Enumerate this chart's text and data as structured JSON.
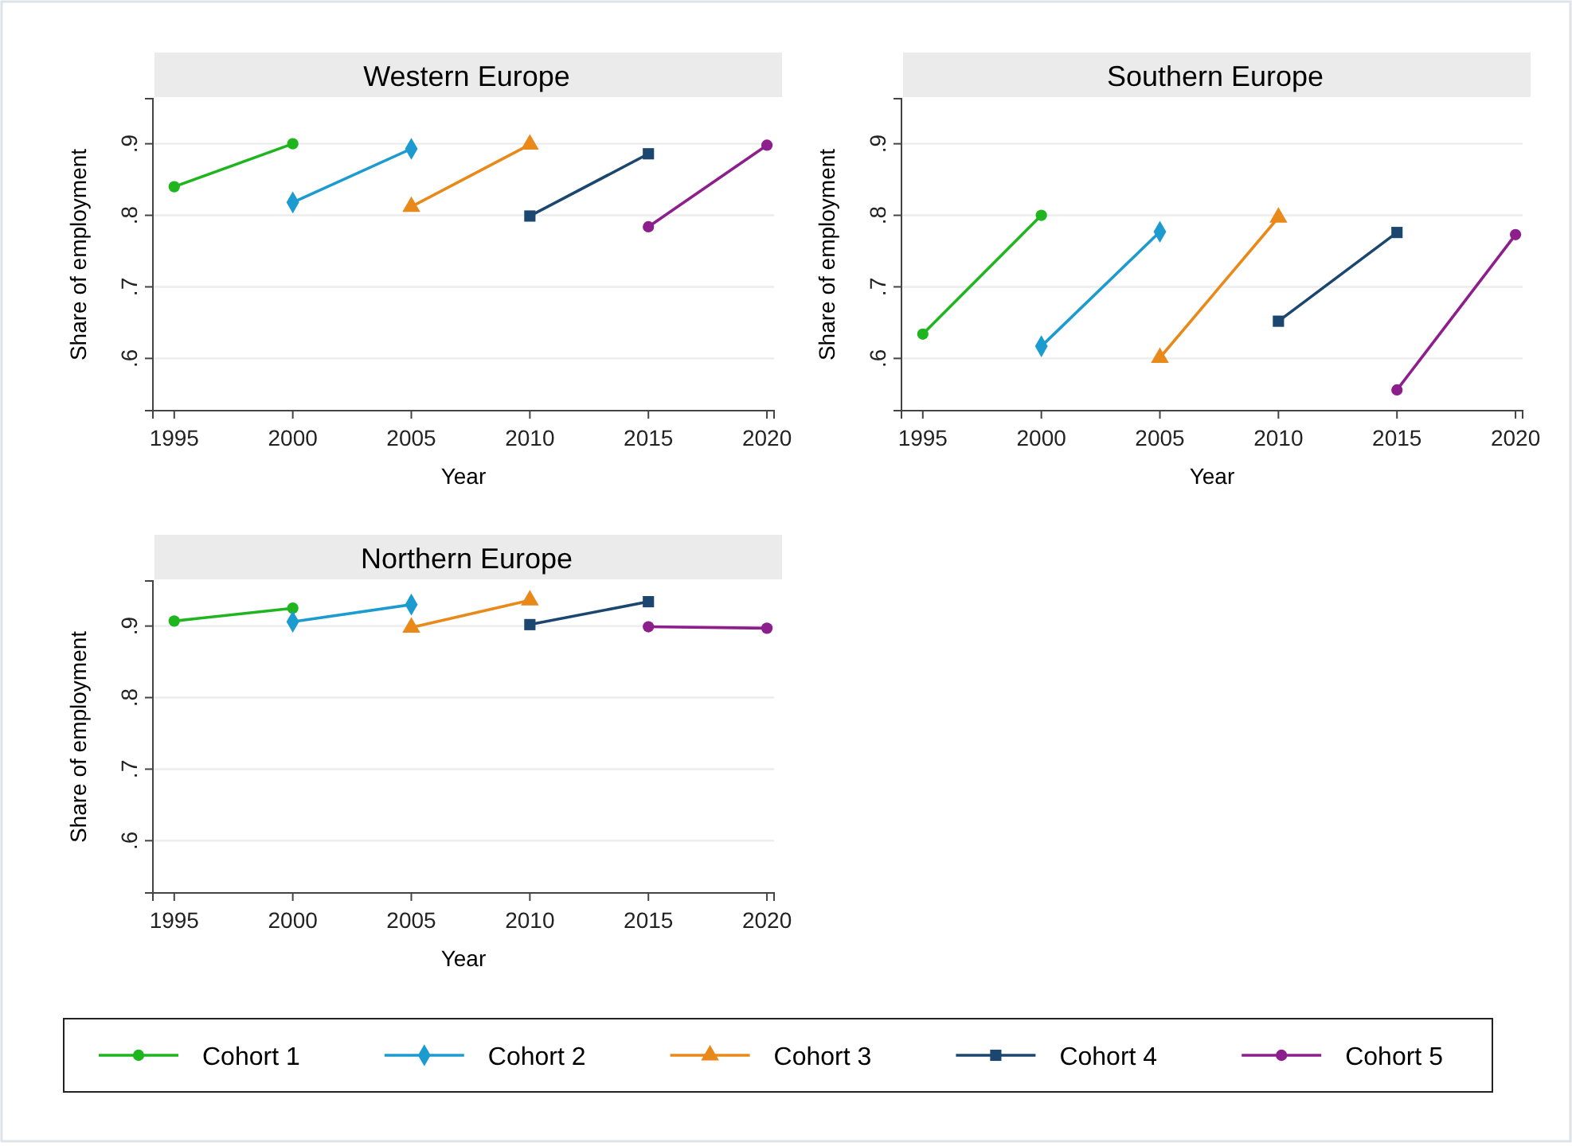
{
  "chart_data": [
    {
      "type": "line",
      "title": "Western Europe",
      "xlabel": "Year",
      "ylabel": "Share of employment",
      "xlim": [
        1994.1,
        2020.3
      ],
      "xticks": [
        1995,
        2000,
        2005,
        2010,
        2015,
        2020
      ],
      "ylim": [
        0.527,
        0.963
      ],
      "yticks": [
        {
          "value": 0.6,
          "label": ".6"
        },
        {
          "value": 0.7,
          "label": ".7"
        },
        {
          "value": 0.8,
          "label": ".8"
        },
        {
          "value": 0.9,
          "label": ".9"
        }
      ],
      "grid": "y",
      "legend": "bottom",
      "series": [
        {
          "name": "Cohort 1",
          "color": "#1fb51f",
          "marker": "circle",
          "x": [
            1995,
            2000
          ],
          "values": [
            0.84,
            0.9
          ]
        },
        {
          "name": "Cohort 2",
          "color": "#1c9bd0",
          "marker": "diamond",
          "x": [
            2000,
            2005
          ],
          "values": [
            0.818,
            0.893
          ]
        },
        {
          "name": "Cohort 3",
          "color": "#e8891a",
          "marker": "triangle",
          "x": [
            2005,
            2010
          ],
          "values": [
            0.812,
            0.899
          ]
        },
        {
          "name": "Cohort 4",
          "color": "#1b4670",
          "marker": "square",
          "x": [
            2010,
            2015
          ],
          "values": [
            0.799,
            0.886
          ]
        },
        {
          "name": "Cohort 5",
          "color": "#8c1f8c",
          "marker": "circle",
          "x": [
            2015,
            2020
          ],
          "values": [
            0.784,
            0.898
          ]
        }
      ]
    },
    {
      "type": "line",
      "title": "Southern Europe",
      "xlabel": "Year",
      "ylabel": "Share of employment",
      "xlim": [
        1994.1,
        2020.3
      ],
      "xticks": [
        1995,
        2000,
        2005,
        2010,
        2015,
        2020
      ],
      "ylim": [
        0.527,
        0.963
      ],
      "yticks": [
        {
          "value": 0.6,
          "label": ".6"
        },
        {
          "value": 0.7,
          "label": ".7"
        },
        {
          "value": 0.8,
          "label": ".8"
        },
        {
          "value": 0.9,
          "label": ".9"
        }
      ],
      "grid": "y",
      "legend": "bottom",
      "series": [
        {
          "name": "Cohort 1",
          "color": "#1fb51f",
          "marker": "circle",
          "x": [
            1995,
            2000
          ],
          "values": [
            0.634,
            0.8
          ]
        },
        {
          "name": "Cohort 2",
          "color": "#1c9bd0",
          "marker": "diamond",
          "x": [
            2000,
            2005
          ],
          "values": [
            0.617,
            0.777
          ]
        },
        {
          "name": "Cohort 3",
          "color": "#e8891a",
          "marker": "triangle",
          "x": [
            2005,
            2010
          ],
          "values": [
            0.601,
            0.797
          ]
        },
        {
          "name": "Cohort 4",
          "color": "#1b4670",
          "marker": "square",
          "x": [
            2010,
            2015
          ],
          "values": [
            0.652,
            0.776
          ]
        },
        {
          "name": "Cohort 5",
          "color": "#8c1f8c",
          "marker": "circle",
          "x": [
            2015,
            2020
          ],
          "values": [
            0.556,
            0.773
          ]
        }
      ]
    },
    {
      "type": "line",
      "title": "Northern Europe",
      "xlabel": "Year",
      "ylabel": "Share of employment",
      "xlim": [
        1994.1,
        2020.3
      ],
      "xticks": [
        1995,
        2000,
        2005,
        2010,
        2015,
        2020
      ],
      "ylim": [
        0.527,
        0.963
      ],
      "yticks": [
        {
          "value": 0.6,
          "label": ".6"
        },
        {
          "value": 0.7,
          "label": ".7"
        },
        {
          "value": 0.8,
          "label": ".8"
        },
        {
          "value": 0.9,
          "label": ".9"
        }
      ],
      "grid": "y",
      "legend": "bottom",
      "series": [
        {
          "name": "Cohort 1",
          "color": "#1fb51f",
          "marker": "circle",
          "x": [
            1995,
            2000
          ],
          "values": [
            0.907,
            0.925
          ]
        },
        {
          "name": "Cohort 2",
          "color": "#1c9bd0",
          "marker": "diamond",
          "x": [
            2000,
            2005
          ],
          "values": [
            0.906,
            0.93
          ]
        },
        {
          "name": "Cohort 3",
          "color": "#e8891a",
          "marker": "triangle",
          "x": [
            2005,
            2010
          ],
          "values": [
            0.898,
            0.936
          ]
        },
        {
          "name": "Cohort 4",
          "color": "#1b4670",
          "marker": "square",
          "x": [
            2010,
            2015
          ],
          "values": [
            0.902,
            0.934
          ]
        },
        {
          "name": "Cohort 5",
          "color": "#8c1f8c",
          "marker": "circle",
          "x": [
            2015,
            2020
          ],
          "values": [
            0.899,
            0.897
          ]
        }
      ]
    }
  ]
}
